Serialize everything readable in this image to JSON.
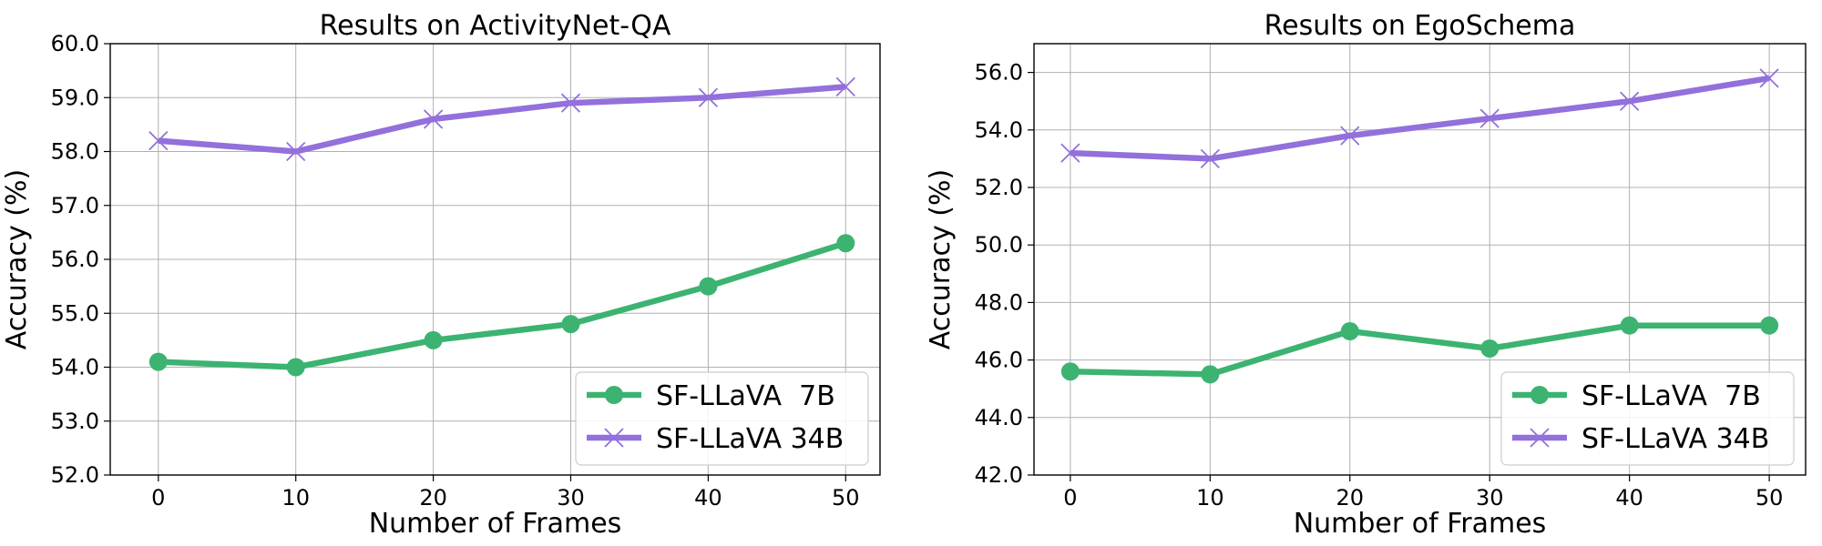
{
  "chart_data": [
    {
      "type": "line",
      "title": "Results on ActivityNet-QA",
      "xlabel": "Number of Frames",
      "ylabel": "Accuracy (%)",
      "x": [
        0,
        10,
        20,
        30,
        40,
        50
      ],
      "xticks": [
        "0",
        "10",
        "20",
        "30",
        "40",
        "50"
      ],
      "xlim": [
        -3.5,
        52.5
      ],
      "ylim": [
        52.0,
        60.0
      ],
      "yticks": [
        "52.0",
        "53.0",
        "54.0",
        "55.0",
        "56.0",
        "57.0",
        "58.0",
        "59.0",
        "60.0"
      ],
      "grid": true,
      "legend_position": "lower-right",
      "series": [
        {
          "name": "SF-LLaVA  7B",
          "color": "#3cb371",
          "marker": "circle",
          "values": [
            54.1,
            54.0,
            54.5,
            54.8,
            55.5,
            56.3
          ]
        },
        {
          "name": "SF-LLaVA 34B",
          "color": "#9370db",
          "marker": "x",
          "values": [
            58.2,
            58.0,
            58.6,
            58.9,
            59.0,
            59.2
          ]
        }
      ]
    },
    {
      "type": "line",
      "title": "Results on EgoSchema",
      "xlabel": "Number of Frames",
      "ylabel": "Accuracy (%)",
      "x": [
        0,
        10,
        20,
        30,
        40,
        50
      ],
      "xticks": [
        "0",
        "10",
        "20",
        "30",
        "40",
        "50"
      ],
      "xlim": [
        -2.6,
        52.6
      ],
      "ylim": [
        42.0,
        57.0
      ],
      "yticks": [
        "42.0",
        "44.0",
        "46.0",
        "48.0",
        "50.0",
        "52.0",
        "54.0",
        "56.0"
      ],
      "grid": true,
      "legend_position": "lower-right",
      "series": [
        {
          "name": "SF-LLaVA  7B",
          "color": "#3cb371",
          "marker": "circle",
          "values": [
            45.6,
            45.5,
            47.0,
            46.4,
            47.2,
            47.2
          ]
        },
        {
          "name": "SF-LLaVA 34B",
          "color": "#9370db",
          "marker": "x",
          "values": [
            53.2,
            53.0,
            53.8,
            54.4,
            55.0,
            55.8
          ]
        }
      ]
    }
  ]
}
